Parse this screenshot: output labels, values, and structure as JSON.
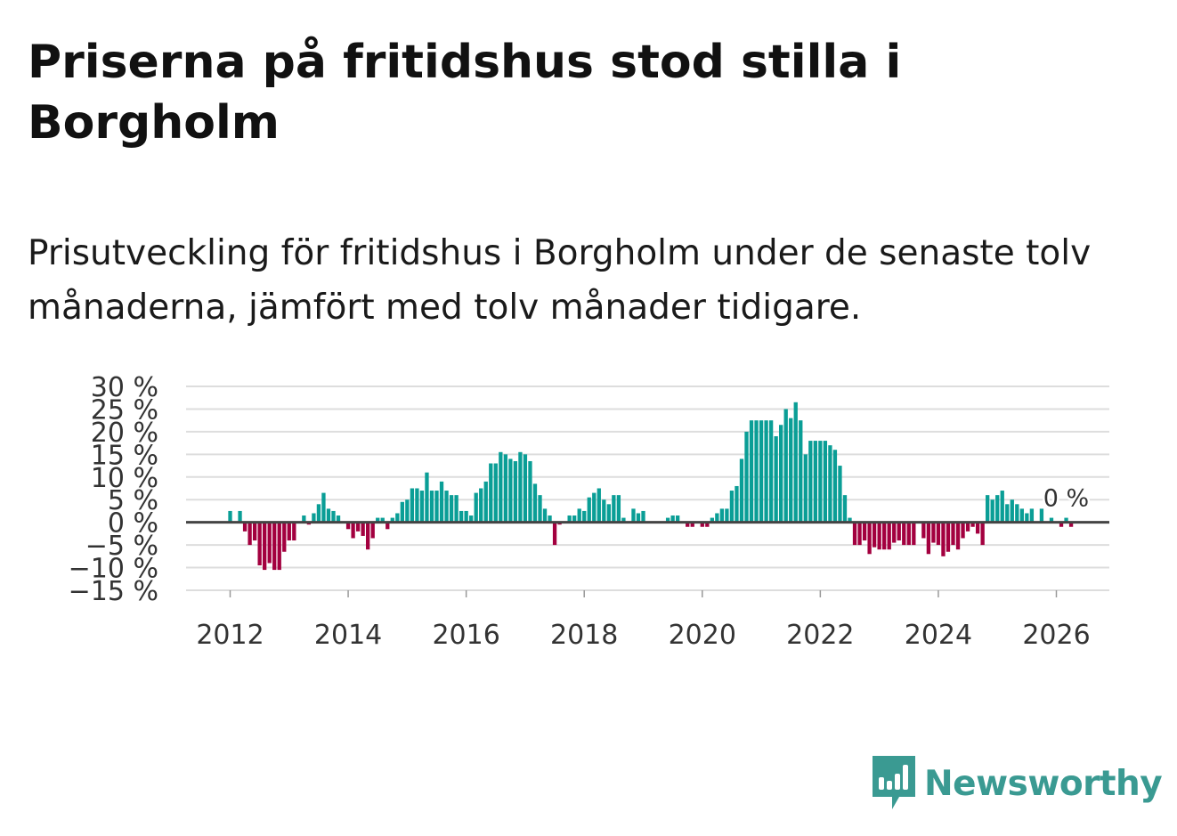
{
  "header": {
    "title": "Priserna på fritidshus stod stilla i Borgholm",
    "subtitle": "Prisutveckling för fritidshus i Borgholm under de senaste tolv månaderna, jämfört med tolv månader tidigare."
  },
  "colors": {
    "positive": "#0a9e96",
    "negative": "#a3003f",
    "zero_line": "#444444",
    "grid": "#dddddd",
    "brand": "#3a9a92"
  },
  "brand": {
    "name": "Newsworthy",
    "icon": "newsworthy-chart-icon"
  },
  "chart_data": {
    "type": "bar",
    "title": "Priserna på fritidshus stod stilla i Borgholm",
    "subtitle": "Prisutveckling för fritidshus i Borgholm under de senaste tolv månaderna, jämfört med tolv månader tidigare.",
    "xlabel": "",
    "ylabel": "",
    "x_unit": "month",
    "x_start": "2011-01",
    "ylim": [
      -15,
      30
    ],
    "y_ticks": [
      30,
      25,
      20,
      15,
      10,
      5,
      0,
      -5,
      -10,
      -15
    ],
    "y_tick_labels": [
      "30 %",
      "25 %",
      "20 %",
      "15 %",
      "10 %",
      "5 %",
      "0 %",
      "−5 %",
      "−10 %",
      "−15 %"
    ],
    "x_ticks": [
      2012,
      2014,
      2016,
      2018,
      2020,
      2022,
      2024,
      2026
    ],
    "x_tick_labels": [
      "2012",
      "2014",
      "2016",
      "2018",
      "2020",
      "2022",
      "2024",
      "2026"
    ],
    "grid": true,
    "annotation": {
      "label": "0 %",
      "x": "2026-01",
      "value": 0
    },
    "values": [
      null,
      null,
      null,
      null,
      null,
      null,
      null,
      null,
      null,
      null,
      null,
      null,
      2.5,
      0,
      2.5,
      -2,
      -5,
      -4,
      -9.5,
      -10.5,
      -9,
      -10.5,
      -10.5,
      -6.5,
      -4,
      -4,
      0,
      1.5,
      -0.5,
      2,
      4,
      6.5,
      3,
      2.5,
      1.5,
      0,
      -1.5,
      -3.5,
      -2,
      -3,
      -6,
      -3.5,
      1,
      1,
      -1.5,
      1,
      2,
      4.5,
      5,
      7.5,
      7.5,
      7,
      11,
      7,
      7,
      9,
      7,
      6,
      6,
      2.5,
      2.5,
      1.5,
      6.5,
      7.5,
      9,
      13,
      13,
      15.5,
      15,
      14,
      13.5,
      15.5,
      15,
      13.5,
      8.5,
      6,
      3,
      1.5,
      -5,
      -0.5,
      0,
      1.5,
      1.5,
      3,
      2.5,
      5.5,
      6.5,
      7.5,
      5,
      4,
      6,
      6,
      1,
      0,
      3,
      2,
      2.5,
      0,
      0,
      0,
      0,
      1,
      1.5,
      1.5,
      0,
      -1,
      -1,
      0,
      -1,
      -1,
      1,
      2,
      3,
      3,
      7,
      8,
      14,
      20,
      22.5,
      22.5,
      22.5,
      22.5,
      22.5,
      19,
      21.5,
      25,
      23,
      26.5,
      22.5,
      15,
      18,
      18,
      18,
      18,
      17,
      16,
      12.5,
      6,
      1,
      -5,
      -5,
      -4,
      -7,
      -5.5,
      -6,
      -6,
      -6,
      -4.5,
      -4,
      -5,
      -5,
      -5,
      0,
      -3.5,
      -7,
      -4.5,
      -5,
      -7.5,
      -6.5,
      -5,
      -6,
      -3.5,
      -2,
      -1,
      -2.5,
      -5,
      6,
      5,
      6,
      7,
      4,
      5,
      4,
      3,
      2,
      3,
      0,
      3,
      0,
      1,
      0,
      -1,
      1,
      -1
    ]
  }
}
